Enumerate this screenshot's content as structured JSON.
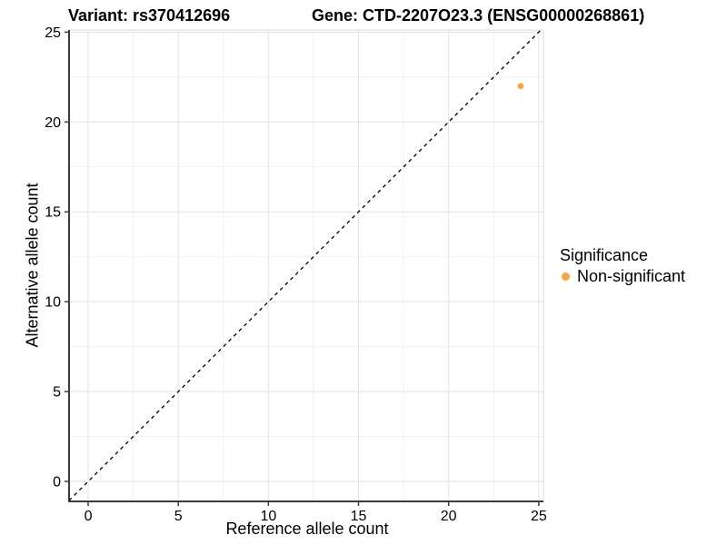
{
  "chart_data": {
    "type": "scatter",
    "title_left": "Variant: rs370412696",
    "title_right": "Gene: CTD-2207O23.3 (ENSG00000268861)",
    "xlabel": "Reference allele count",
    "ylabel": "Alternative allele count",
    "xlim": [
      -1.06,
      25.26
    ],
    "ylim": [
      -1.11,
      25.12
    ],
    "x_ticks": [
      0,
      5,
      10,
      15,
      20,
      25
    ],
    "y_ticks": [
      0,
      5,
      10,
      15,
      20,
      25
    ],
    "x_minor_ticks": [
      2.5,
      7.5,
      12.5,
      17.5,
      22.5
    ],
    "y_minor_ticks": [
      2.5,
      7.5,
      12.5,
      17.5,
      22.5
    ],
    "grid": true,
    "points": [
      {
        "x": 24,
        "y": 22,
        "series": "Non-significant",
        "color": "#FAA43B"
      }
    ],
    "identity_line": {
      "slope": 1,
      "intercept": 0,
      "style": "dashed",
      "color": "#000000"
    },
    "legend": {
      "title": "Significance",
      "position": "right",
      "items": [
        {
          "label": "Non-significant",
          "color": "#FAA43B"
        }
      ]
    },
    "colors": {
      "point_orange": "#FAA43B",
      "axis_line": "#3C3C3C",
      "grid_major": "#E4E4E4",
      "grid_minor": "#F1F1F1",
      "panel_border_light": "#DBDBDB",
      "text": "#000000"
    }
  }
}
